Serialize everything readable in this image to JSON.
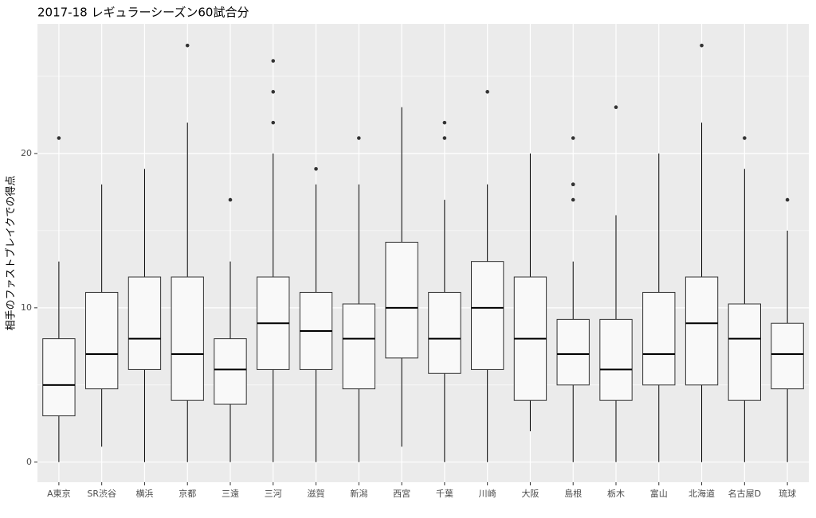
{
  "chart_data": {
    "type": "boxplot",
    "title": "2017-18 レギュラーシーズン60試合分",
    "y_label": "相手のファストブレイクでの得点",
    "categories": [
      "A東京",
      "SR渋谷",
      "横浜",
      "京都",
      "三遠",
      "三河",
      "滋賀",
      "新潟",
      "西宮",
      "千葉",
      "川崎",
      "大阪",
      "島根",
      "栃木",
      "富山",
      "北海道",
      "名古屋D",
      "琉球"
    ],
    "boxes": [
      {
        "low": 0,
        "q1": 3,
        "median": 5,
        "q3": 8,
        "high": 13,
        "outliers": [
          21
        ]
      },
      {
        "low": 1,
        "q1": 4.75,
        "median": 7,
        "q3": 11,
        "high": 18,
        "outliers": []
      },
      {
        "low": 0,
        "q1": 6,
        "median": 8,
        "q3": 12,
        "high": 19,
        "outliers": []
      },
      {
        "low": 0,
        "q1": 4,
        "median": 7,
        "q3": 12,
        "high": 22,
        "outliers": [
          27
        ]
      },
      {
        "low": 0,
        "q1": 3.75,
        "median": 6,
        "q3": 8,
        "high": 13,
        "outliers": [
          17
        ]
      },
      {
        "low": 0,
        "q1": 6,
        "median": 9,
        "q3": 12,
        "high": 20,
        "outliers": [
          22,
          24,
          26
        ]
      },
      {
        "low": 0,
        "q1": 6,
        "median": 8.5,
        "q3": 11,
        "high": 18,
        "outliers": [
          19
        ]
      },
      {
        "low": 0,
        "q1": 4.75,
        "median": 8,
        "q3": 10.25,
        "high": 18,
        "outliers": [
          21
        ]
      },
      {
        "low": 1,
        "q1": 6.75,
        "median": 10,
        "q3": 14.25,
        "high": 23,
        "outliers": []
      },
      {
        "low": 0,
        "q1": 5.75,
        "median": 8,
        "q3": 11,
        "high": 17,
        "outliers": [
          21,
          22
        ]
      },
      {
        "low": 0,
        "q1": 6,
        "median": 10,
        "q3": 13,
        "high": 18,
        "outliers": [
          24
        ]
      },
      {
        "low": 2,
        "q1": 4,
        "median": 8,
        "q3": 12,
        "high": 20,
        "outliers": []
      },
      {
        "low": 0,
        "q1": 5,
        "median": 7,
        "q3": 9.25,
        "high": 13,
        "outliers": [
          17,
          18,
          18,
          21
        ]
      },
      {
        "low": 0,
        "q1": 4,
        "median": 6,
        "q3": 9.25,
        "high": 16,
        "outliers": [
          23
        ]
      },
      {
        "low": 0,
        "q1": 5,
        "median": 7,
        "q3": 11,
        "high": 20,
        "outliers": []
      },
      {
        "low": 0,
        "q1": 5,
        "median": 9,
        "q3": 12,
        "high": 22,
        "outliers": [
          27
        ]
      },
      {
        "low": 0,
        "q1": 4,
        "median": 8,
        "q3": 10.25,
        "high": 19,
        "outliers": [
          21
        ]
      },
      {
        "low": 0,
        "q1": 4.75,
        "median": 7,
        "q3": 9,
        "high": 15,
        "outliers": [
          17
        ]
      }
    ],
    "color": "#f9f9f9",
    "ylim": [
      -1.3,
      28.4
    ],
    "yticks": [
      0,
      10,
      20
    ],
    "minor_yticks": [
      5,
      15,
      25
    ],
    "grid": true
  }
}
